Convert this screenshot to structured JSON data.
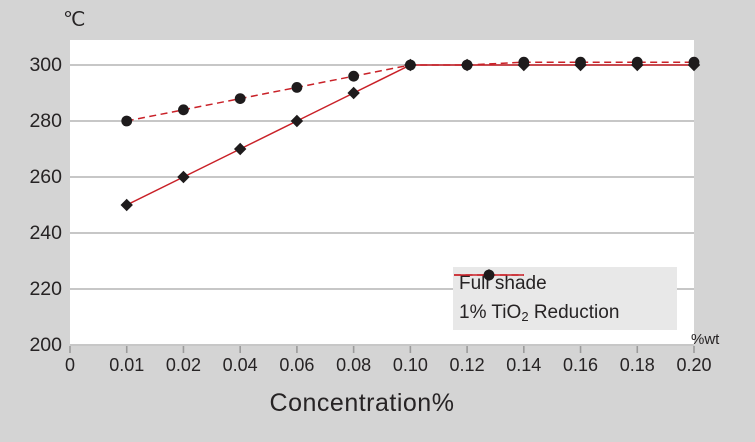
{
  "figure": {
    "background": "#d4d4d4",
    "plot_background": "#ffffff",
    "gridline_color": "#c7c7c7",
    "tick_color": "#9a9a9a",
    "text_color": "#262324",
    "line_color": "#c92128",
    "marker_color": "#1e1b1c",
    "legend_background": "#e8e8e8"
  },
  "chart_data": {
    "type": "line",
    "title": "",
    "xlabel": "Concentration%",
    "x_unit": "%wt",
    "y_unit": "℃",
    "x_type": "categorical",
    "categories": [
      "0",
      "0.01",
      "0.02",
      "0.04",
      "0.06",
      "0.08",
      "0.10",
      "0.12",
      "0.14",
      "0.16",
      "0.18",
      "0.20"
    ],
    "yticks": [
      "200",
      "220",
      "240",
      "260",
      "280",
      "300"
    ],
    "ylim": [
      200,
      309
    ],
    "grid": "horizontal-only",
    "legend_position": "inside-bottom-right",
    "series": [
      {
        "name": "Full shade",
        "line_style": "solid",
        "marker": "diamond",
        "values": [
          null,
          250,
          260,
          270,
          280,
          290,
          300,
          300,
          300,
          300,
          300,
          300
        ]
      },
      {
        "name": "1% TiO2 Reduction",
        "line_style": "dashed",
        "marker": "circle",
        "values": [
          null,
          280,
          284,
          288,
          292,
          296,
          300,
          300,
          301,
          301,
          301,
          301
        ]
      }
    ],
    "legend": [
      {
        "series": 0,
        "label_parts": [
          {
            "t": "Full shade"
          }
        ]
      },
      {
        "series": 1,
        "label_parts": [
          {
            "t": "1% TiO"
          },
          {
            "t": "2",
            "sub": true
          },
          {
            "t": " Reduction"
          }
        ]
      }
    ]
  }
}
